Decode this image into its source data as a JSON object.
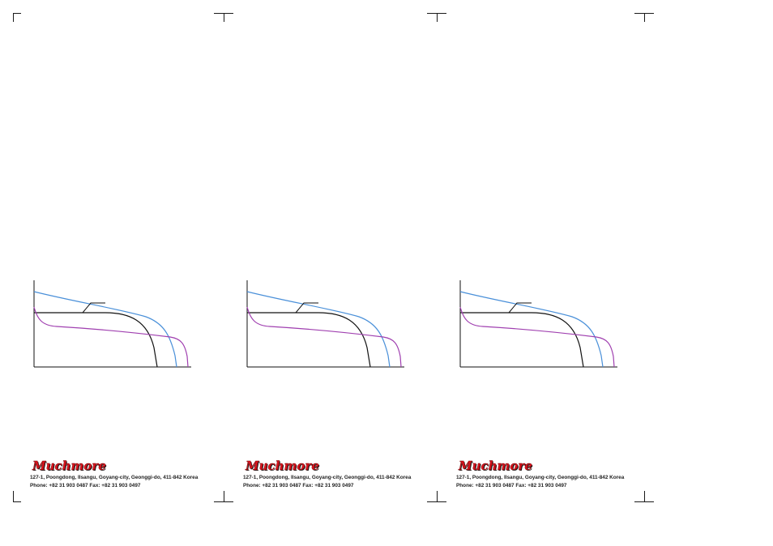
{
  "panels": [
    {
      "logo_text": "Muchmore",
      "address_line": "127-1, Poongdong, Ilsangu, Goyang-city, Geonggi-do, 411-842 Korea",
      "contact_line": "Phone: +82 31 903 0487  Fax: +82 31 903 0497"
    },
    {
      "logo_text": "Muchmore",
      "address_line": "127-1, Poongdong, Ilsangu, Goyang-city, Geonggi-do, 411-842 Korea",
      "contact_line": "Phone: +82 31 903 0487  Fax: +82 31 903 0497"
    },
    {
      "logo_text": "Muchmore",
      "address_line": "127-1, Poongdong, Ilsangu, Goyang-city, Geonggi-do, 411-842 Korea",
      "contact_line": "Phone: +82 31 903 0487  Fax: +82 31 903 0497"
    }
  ],
  "colors": {
    "blue_curve": "#4a90d9",
    "purple_curve": "#a040b0",
    "black_curve": "#111111",
    "logo_red": "#d8141e"
  }
}
